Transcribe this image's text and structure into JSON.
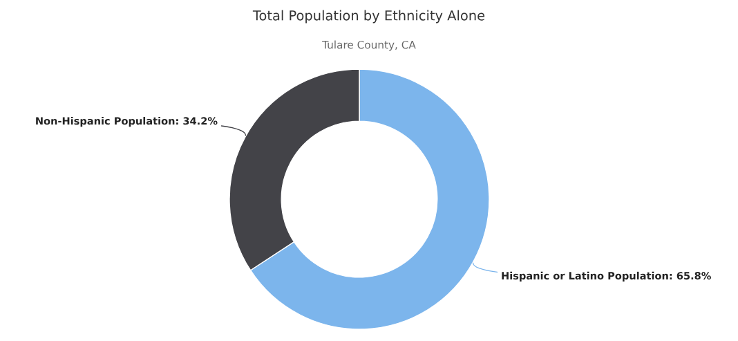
{
  "chart_data": {
    "type": "donut",
    "title": "Total Population by Ethnicity Alone",
    "subtitle": "Tulare County, CA",
    "categories": [
      "Hispanic or Latino Population",
      "Non-Hispanic Population"
    ],
    "values": [
      65.8,
      34.2
    ],
    "value_labels": [
      "65.8%",
      "34.2%"
    ],
    "colors": [
      "#7cb5ec",
      "#434348"
    ],
    "legend": false
  }
}
